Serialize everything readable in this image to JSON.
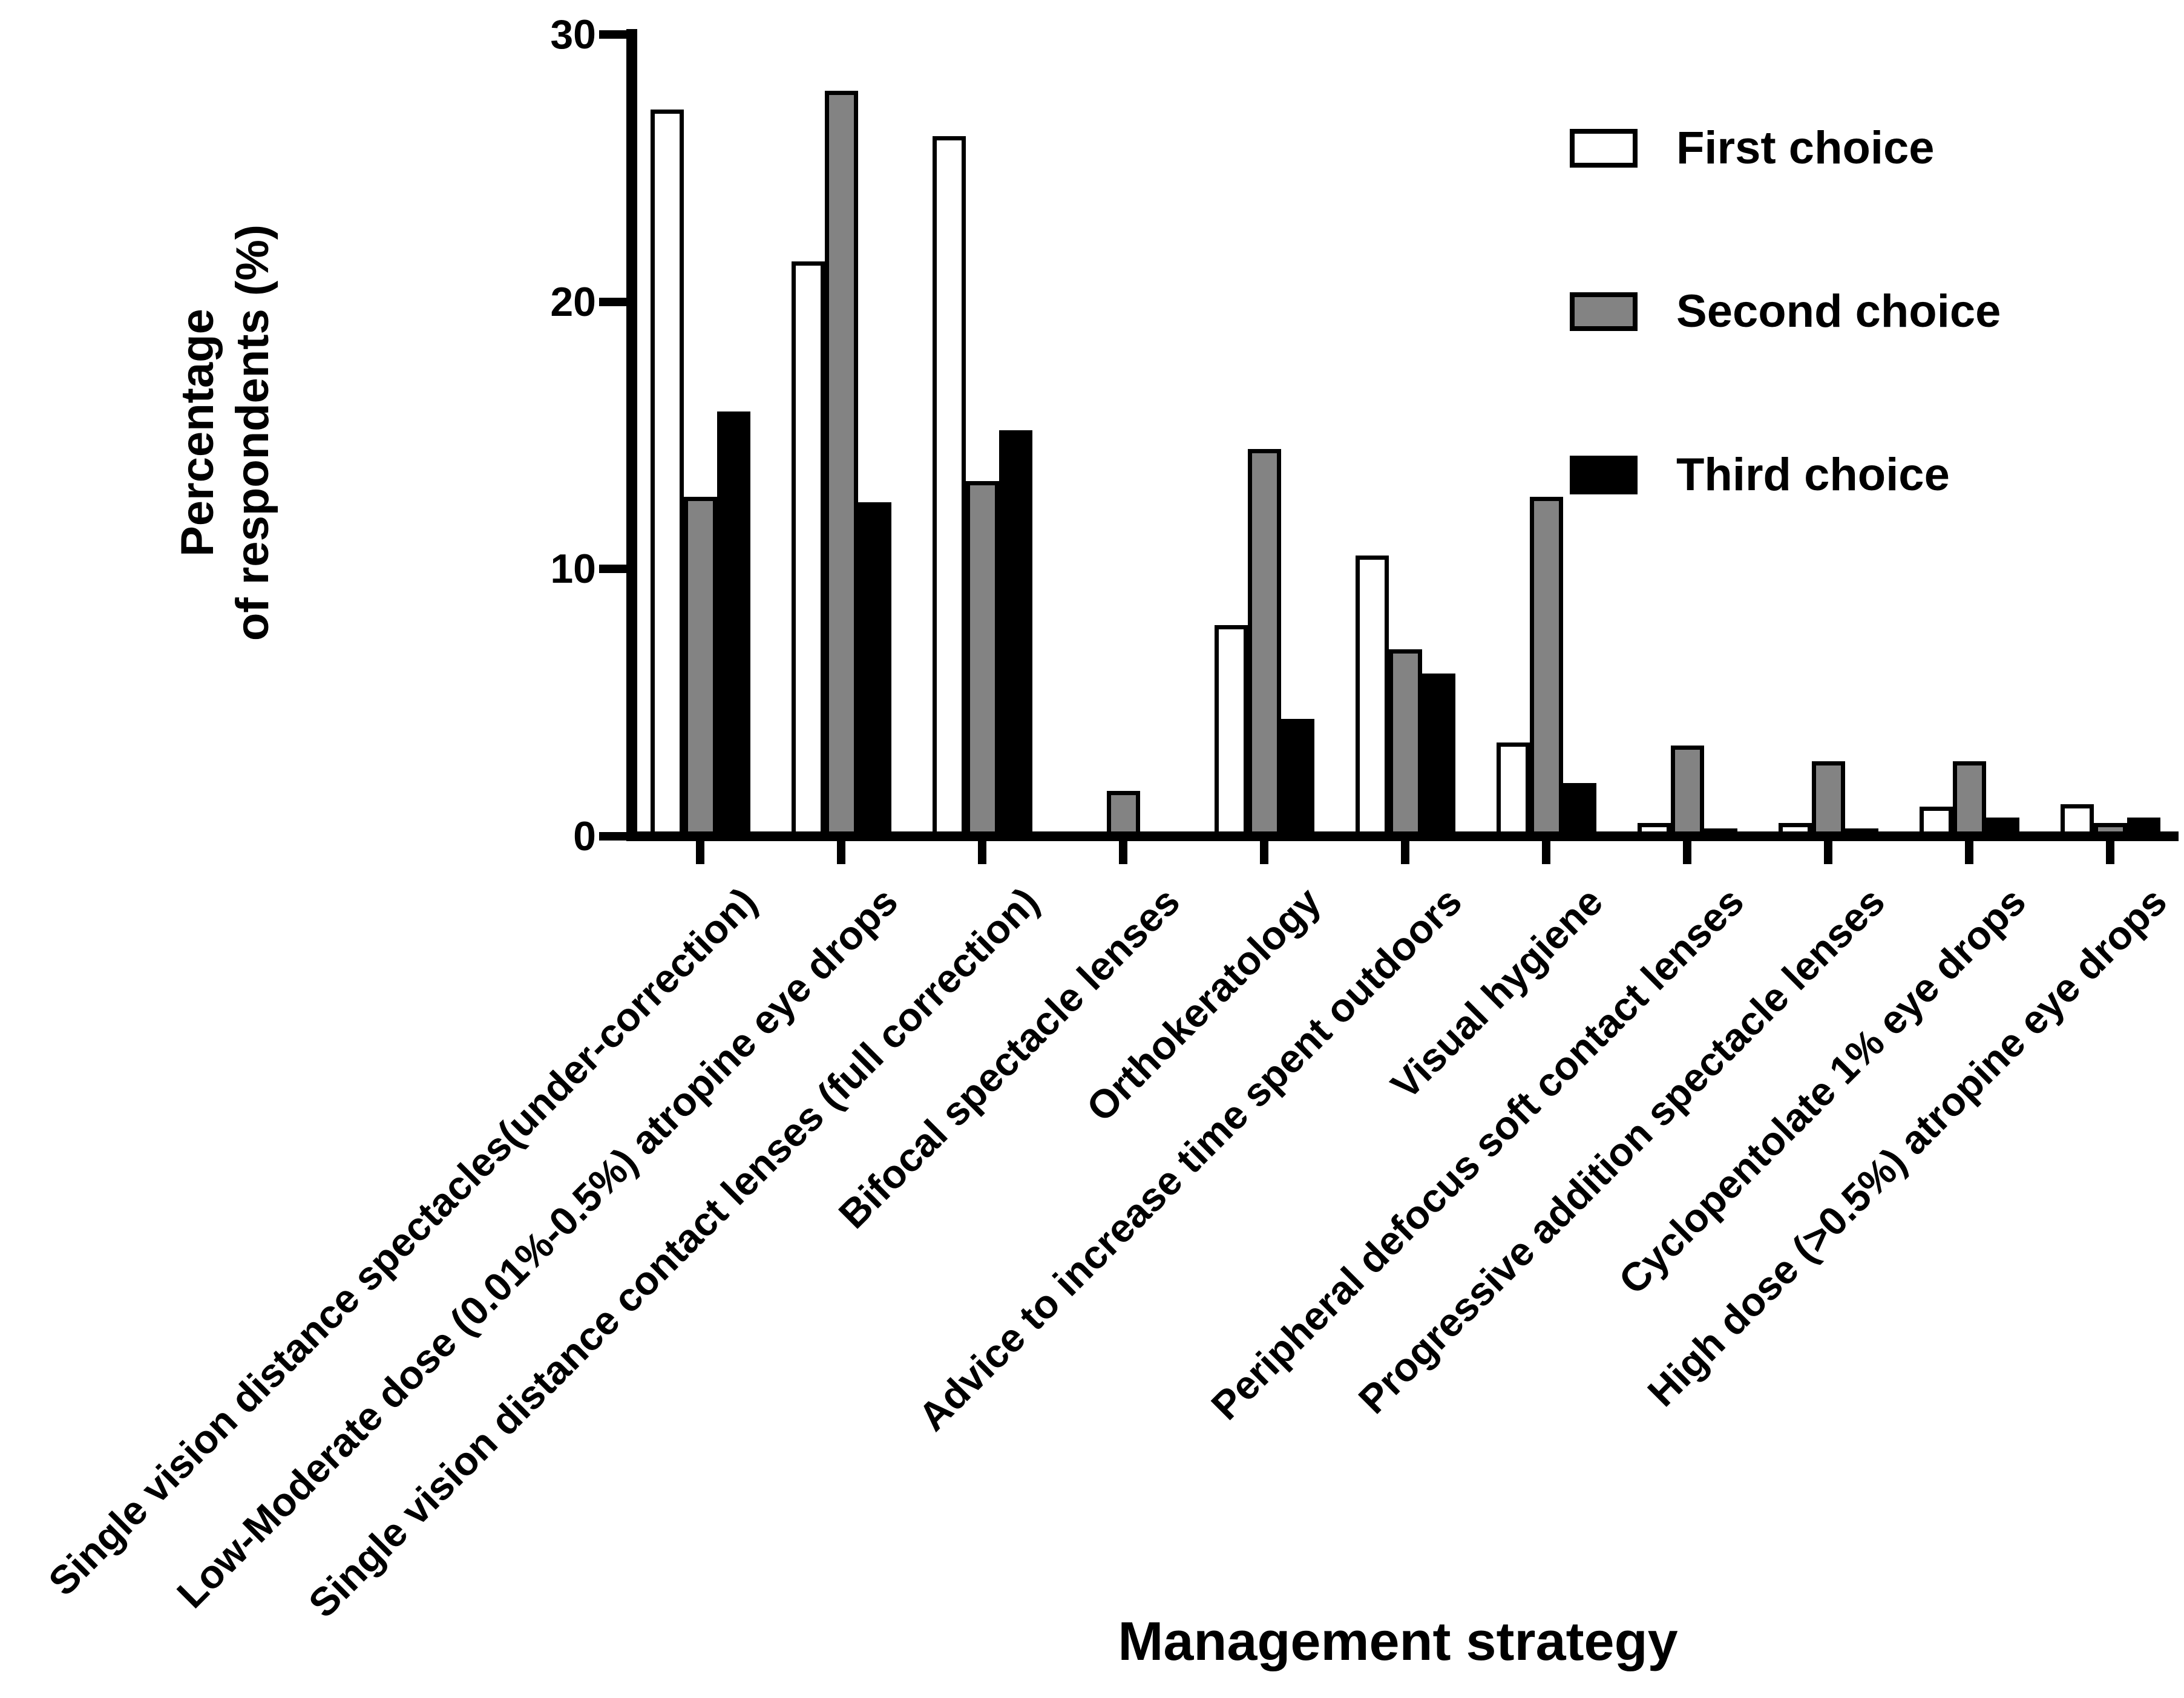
{
  "page": {
    "background_color": "#FFFFFF",
    "accent_color": "#000000"
  },
  "chart_data": {
    "type": "bar",
    "title": "",
    "xlabel": "Management strategy",
    "ylabel": "Percentage of respondents (%)",
    "ylabel_line1": "Percentage",
    "ylabel_line2": "of respondents (%)",
    "ylim": [
      0,
      30
    ],
    "yticks": [
      "0",
      "10",
      "20",
      "30"
    ],
    "grid": false,
    "legend_position": "top-right",
    "categories": [
      "Single vision distance spectacles(under-correction)",
      "Low-Moderate dose (0.01%-0.5%) atropine eye drops",
      "Single vision distance contact lenses (full correction)",
      "Bifocal spectacle lenses",
      "Orthokeratology",
      "Advice to increase time spent outdoors",
      "Visual hygiene",
      "Peripheral defocus soft contact lenses",
      "Progressive addition spectacle lenses",
      "Cyclopentolate 1% eye drops",
      "High dose (>0.5%) atropine eye drops"
    ],
    "series": [
      {
        "name": "First choice",
        "color": "#FFFFFF",
        "values": [
          27.2,
          21.5,
          26.2,
          0,
          7.9,
          10.5,
          3.5,
          0.5,
          0.5,
          1.1,
          1.2
        ]
      },
      {
        "name": "Second choice",
        "color": "#838383",
        "values": [
          12.7,
          27.9,
          13.3,
          1.7,
          14.5,
          7.0,
          12.7,
          3.4,
          2.8,
          2.8,
          0.5
        ]
      },
      {
        "name": "Third choice",
        "color": "#000000",
        "values": [
          15.9,
          12.5,
          15.2,
          0,
          4.4,
          6.1,
          2.0,
          0.3,
          0.3,
          0.7,
          0.7
        ]
      }
    ]
  }
}
